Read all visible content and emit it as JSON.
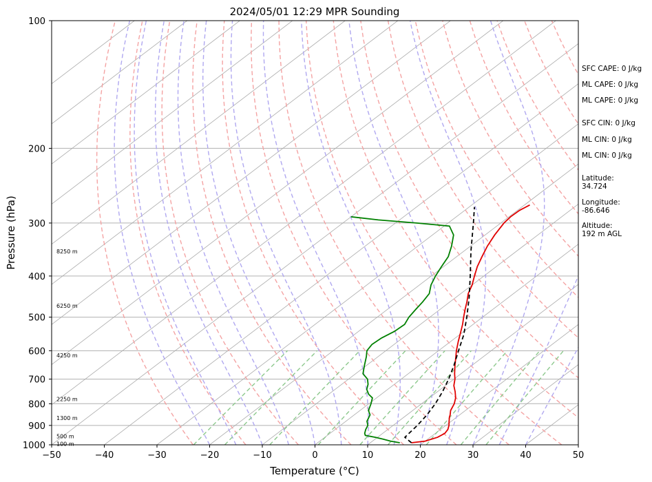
{
  "chart_data": {
    "type": "skew-t",
    "title": "2024/05/01 12:29 MPR Sounding",
    "xlabel": "Temperature (°C)",
    "ylabel": "Pressure (hPa)",
    "xlim": [
      -50,
      50
    ],
    "ylim": [
      1000,
      100
    ],
    "y_scale": "log",
    "x_ticks": [
      -50,
      -40,
      -30,
      -20,
      -10,
      0,
      10,
      20,
      30,
      40,
      50
    ],
    "x_tick_labels": [
      "−50",
      "−40",
      "−30",
      "−20",
      "−10",
      "0",
      "10",
      "20",
      "30",
      "40",
      "50"
    ],
    "y_ticks": [
      1000,
      900,
      800,
      700,
      600,
      500,
      400,
      300,
      200,
      100
    ],
    "y_tick_labels": [
      "1000",
      "900",
      "800",
      "700",
      "600",
      "500",
      "400",
      "300",
      "200",
      "100"
    ],
    "grid": true,
    "colors": {
      "temperature": "#e00000",
      "dewpoint": "#008000",
      "parcel": "#000000",
      "dry_adiabats": "#f4a3a3",
      "moist_adiabats": "#b0a8f0",
      "mixing_ratio": "#8cc88c",
      "isotherms": "#aaaaaa"
    },
    "series": [
      {
        "role": "temperature",
        "p": [
          989,
          980,
          960,
          940,
          920,
          900,
          880,
          860,
          850,
          830,
          800,
          775,
          750,
          725,
          700,
          680,
          650,
          620,
          600,
          570,
          540,
          520,
          500,
          480,
          460,
          440,
          420,
          400,
          380,
          360,
          340,
          320,
          300,
          290,
          280,
          272
        ],
        "t": [
          17.8,
          20.0,
          21.4,
          21.8,
          21.4,
          20.6,
          19.6,
          18.6,
          18.2,
          17.2,
          16.2,
          15.0,
          13.4,
          11.6,
          10.2,
          8.8,
          6.8,
          4.8,
          3.4,
          1.4,
          -0.6,
          -2.0,
          -3.6,
          -5.2,
          -6.8,
          -8.6,
          -10.0,
          -11.8,
          -13.6,
          -15.2,
          -16.8,
          -18.2,
          -19.4,
          -19.7,
          -19.6,
          -19.0
        ]
      },
      {
        "role": "dewpoint",
        "p": [
          989,
          980,
          970,
          960,
          950,
          940,
          920,
          900,
          880,
          850,
          830,
          800,
          775,
          760,
          740,
          720,
          700,
          680,
          650,
          620,
          600,
          580,
          560,
          540,
          520,
          500,
          480,
          460,
          440,
          420,
          400,
          380,
          360,
          340,
          320,
          305,
          300,
          295,
          290
        ],
        "t": [
          15.6,
          13.4,
          11.6,
          9.6,
          7.2,
          6.6,
          5.8,
          5.2,
          4.0,
          3.0,
          1.6,
          0.4,
          -0.8,
          -2.4,
          -4.0,
          -5.0,
          -6.4,
          -8.6,
          -10.4,
          -12.2,
          -13.6,
          -14.2,
          -14.0,
          -13.2,
          -13.0,
          -14.0,
          -14.6,
          -15.2,
          -16.0,
          -17.8,
          -19.2,
          -20.4,
          -21.6,
          -23.6,
          -26.0,
          -29.0,
          -36.0,
          -44.0,
          -50.0
        ]
      },
      {
        "role": "parcel",
        "p": [
          989,
          960,
          940,
          900,
          850,
          800,
          750,
          700,
          650,
          600,
          550,
          500,
          450,
          400,
          350,
          300,
          275
        ],
        "t": [
          17.8,
          15.2,
          15.0,
          14.6,
          13.8,
          12.6,
          11.0,
          9.0,
          6.6,
          3.8,
          0.8,
          -3.0,
          -7.4,
          -12.6,
          -18.6,
          -25.2,
          -29.0
        ]
      }
    ],
    "height_labels": [
      {
        "p": 995,
        "label": "100 m"
      },
      {
        "p": 955,
        "label": "500 m"
      },
      {
        "p": 865,
        "label": "1300 m"
      },
      {
        "p": 780,
        "label": "2250 m"
      },
      {
        "p": 615,
        "label": "4250 m"
      },
      {
        "p": 470,
        "label": "6250 m"
      },
      {
        "p": 350,
        "label": "8250 m"
      }
    ]
  },
  "annotations": [
    "SFC CAPE: 0 J/kg",
    "ML CAPE: 0 J/kg",
    "ML CAPE: 0 J/kg",
    "SFC CIN: 0 J/kg",
    "ML CIN: 0 J/kg",
    "ML CIN: 0 J/kg",
    "Latitude:",
    "34.724",
    "Longitude:",
    "-86.646",
    "Altitude:",
    "192 m AGL"
  ]
}
